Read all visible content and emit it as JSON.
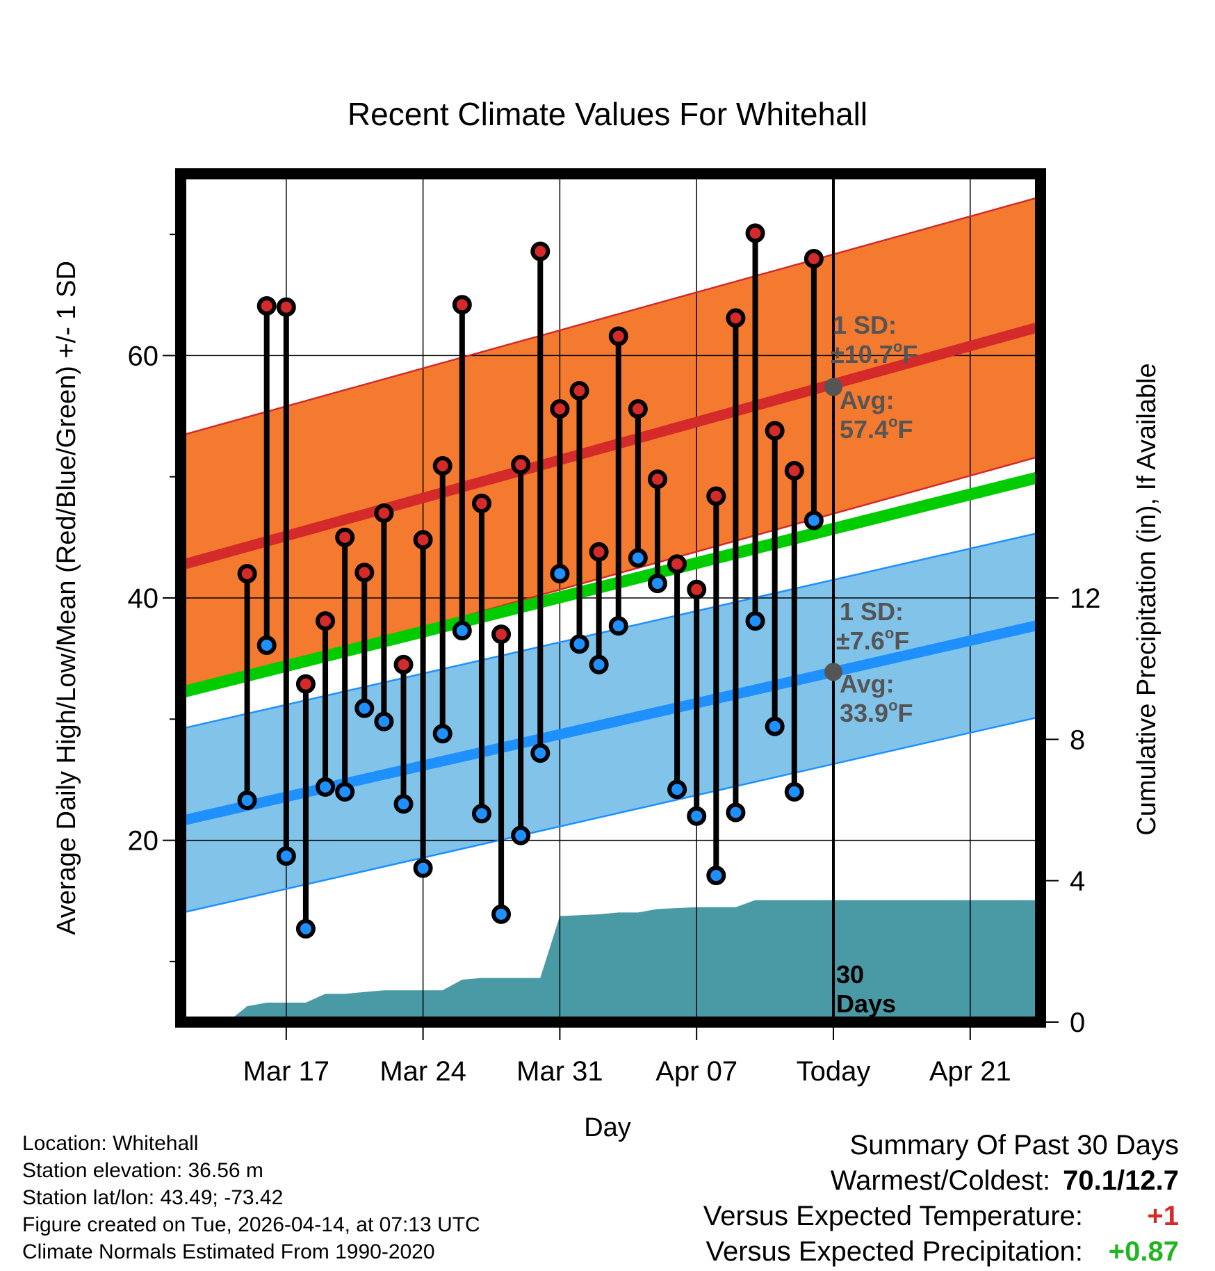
{
  "chart_data": {
    "type": "line",
    "title": "Recent Climate Values For Whitehall",
    "xlabel": "Day",
    "ylabel": "Average Daily High/Low/Mean (Red/Blue/Green) +/- 1 SD",
    "y2label": "Cumulative Precipitation (in), If Available",
    "ylim": [
      5,
      75
    ],
    "y2lim": [
      0,
      24
    ],
    "xlim": [
      -3.4,
      40.6
    ],
    "y_ticks": [
      20,
      40,
      60
    ],
    "y_minor_ticks": [
      10,
      30,
      50,
      70
    ],
    "y2_ticks": [
      0,
      4,
      8,
      12
    ],
    "x_ticks": [
      {
        "day": 2,
        "label": "Mar 17"
      },
      {
        "day": 9,
        "label": "Mar 24"
      },
      {
        "day": 16,
        "label": "Mar 31"
      },
      {
        "day": 23,
        "label": "Apr 07"
      },
      {
        "day": 30,
        "label": "Today"
      },
      {
        "day": 37,
        "label": "Apr 21"
      }
    ],
    "day0_date": "Mar 15",
    "normals": {
      "mean_start": 32.2,
      "mean_end": 50.0,
      "high_avg_start": 42.7,
      "high_avg_end": 62.4,
      "high_sd": 10.7,
      "low_avg_start": 21.6,
      "low_avg_end": 37.8,
      "low_sd": 7.6
    },
    "daily_highs": [
      42.0,
      64.1,
      64.0,
      32.9,
      38.1,
      45.0,
      42.1,
      47.0,
      34.5,
      44.8,
      50.9,
      64.2,
      47.8,
      37.0,
      51.0,
      68.6,
      55.6,
      57.1,
      43.8,
      61.6,
      55.6,
      49.8,
      42.8,
      40.7,
      48.4,
      63.1,
      70.1,
      53.8,
      50.5,
      68.0
    ],
    "daily_lows": [
      23.3,
      36.1,
      18.7,
      12.7,
      24.4,
      24.0,
      30.9,
      29.8,
      23.0,
      17.7,
      28.8,
      37.3,
      22.2,
      13.9,
      20.4,
      27.2,
      42.0,
      36.2,
      34.5,
      37.7,
      43.3,
      41.2,
      24.2,
      22.0,
      17.1,
      22.3,
      38.1,
      29.4,
      24.0,
      46.4
    ],
    "cumulative_precip": [
      {
        "day": -1,
        "in": 0.0
      },
      {
        "day": 0,
        "in": 0.45
      },
      {
        "day": 1,
        "in": 0.55
      },
      {
        "day": 3,
        "in": 0.55
      },
      {
        "day": 4,
        "in": 0.8
      },
      {
        "day": 5,
        "in": 0.8
      },
      {
        "day": 6,
        "in": 0.85
      },
      {
        "day": 7,
        "in": 0.9
      },
      {
        "day": 8,
        "in": 0.9
      },
      {
        "day": 10,
        "in": 0.9
      },
      {
        "day": 11,
        "in": 1.2
      },
      {
        "day": 12,
        "in": 1.25
      },
      {
        "day": 15,
        "in": 1.25
      },
      {
        "day": 16,
        "in": 3.0
      },
      {
        "day": 18,
        "in": 3.05
      },
      {
        "day": 19,
        "in": 3.1
      },
      {
        "day": 20,
        "in": 3.1
      },
      {
        "day": 21,
        "in": 3.2
      },
      {
        "day": 23,
        "in": 3.25
      },
      {
        "day": 25,
        "in": 3.25
      },
      {
        "day": 26,
        "in": 3.45
      },
      {
        "day": 40.6,
        "in": 3.45
      }
    ],
    "today_day": 30,
    "annotations": {
      "high_sd_label": "1 SD:",
      "high_sd_value": "±10.7",
      "high_avg_label": "Avg:",
      "high_avg_value": "57.4",
      "low_sd_label": "1 SD:",
      "low_sd_value": "±7.6",
      "low_avg_label": "Avg:",
      "low_avg_value": "33.9",
      "today_avg_high": 57.4,
      "today_avg_low": 33.9,
      "degree_unit": "o",
      "temp_unit": "F",
      "days_count": "30",
      "days_word": "Days"
    },
    "colors": {
      "high_band": "#f47a30",
      "high_line": "#d42a2a",
      "low_band": "#82c3e9",
      "low_line": "#1e90ff",
      "mean_line": "#00cc00",
      "precip_fill": "#4a9aa5",
      "annotation_text": "#555555",
      "high_marker": "#d42a2a",
      "low_marker": "#1e90ff"
    }
  },
  "footer": {
    "location": "Location: Whitehall",
    "elevation": "Station elevation: 36.56 m",
    "latlon": "Station lat/lon: 43.49; -73.42",
    "created": "Figure created on Tue, 2026-04-14, at 07:13 UTC",
    "normals": "Climate Normals Estimated From 1990-2020"
  },
  "summary": {
    "title": "Summary Of Past 30 Days",
    "warm_cold_label": "Warmest/Coldest:",
    "warm_cold_value": "70.1/12.7",
    "temp_label": "Versus Expected Temperature:",
    "temp_value": "+1",
    "precip_label": "Versus Expected Precipitation:",
    "precip_value": "+0.87"
  }
}
